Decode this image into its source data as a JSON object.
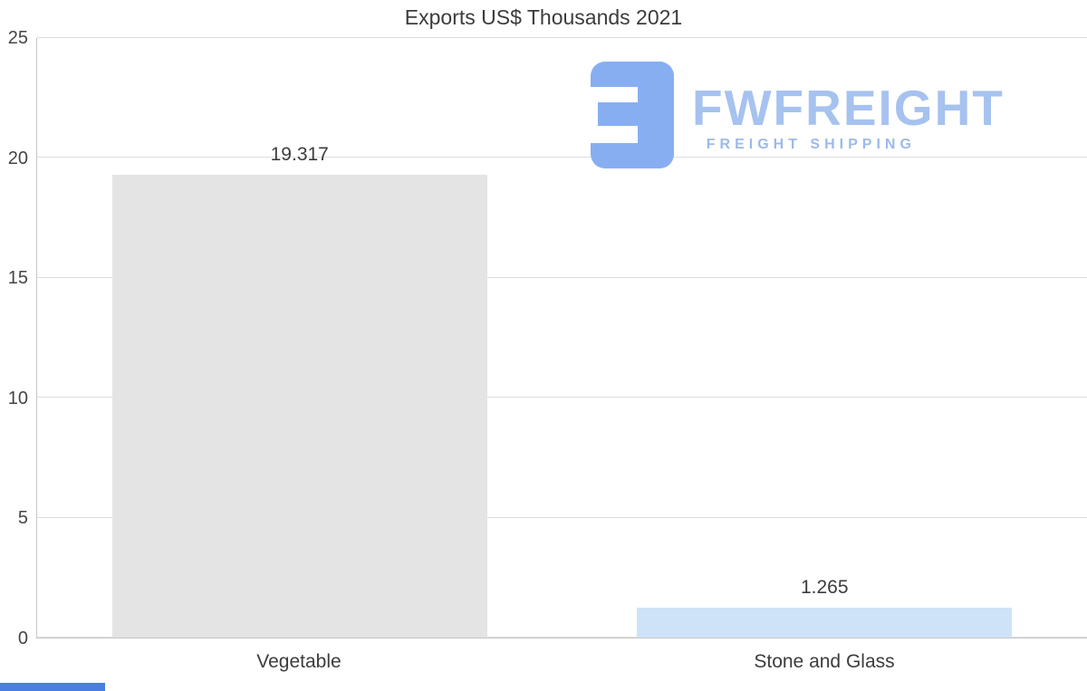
{
  "logo": {
    "brand": "FWFREIGHT",
    "tagline": "FREIGHT SHIPPING",
    "icon_color": "#88aef2",
    "brand_color": "#a6c2ef",
    "tagline_color": "#9db9ea"
  },
  "scroll_indicator": {
    "color": "#4a7fe1"
  },
  "chart_data": {
    "type": "bar",
    "title": "Exports US$ Thousands 2021",
    "categories": [
      "Vegetable",
      "Stone and Glass"
    ],
    "values": [
      19.317,
      1.265
    ],
    "value_labels": [
      "19.317",
      "1.265"
    ],
    "bar_colors": [
      "#e4e4e4",
      "#cfe3f8"
    ],
    "xlabel": "",
    "ylabel": "",
    "ylim": [
      0,
      25
    ],
    "yticks": [
      0,
      5,
      10,
      15,
      20,
      25
    ],
    "grid": true,
    "legend": "none"
  }
}
